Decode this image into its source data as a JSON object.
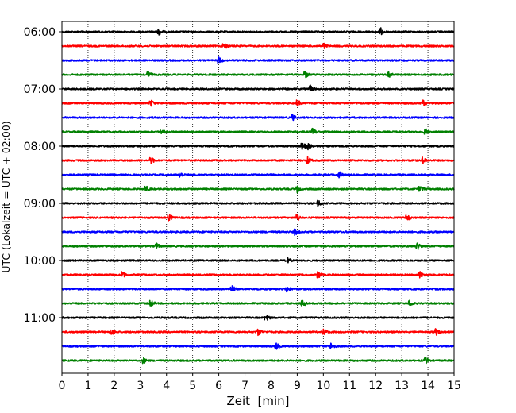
{
  "chart_data": {
    "type": "line",
    "title": "",
    "xlabel": "Zeit  [min]",
    "ylabel": "UTC (Lokalzeit = UTC + 02:00)",
    "xlim": [
      0,
      15
    ],
    "x_ticks": [
      "0",
      "1",
      "2",
      "3",
      "4",
      "5",
      "6",
      "7",
      "8",
      "9",
      "10",
      "11",
      "12",
      "13",
      "14",
      "15"
    ],
    "y_ticks": [
      "06:00",
      "07:00",
      "08:00",
      "09:00",
      "10:00",
      "11:00"
    ],
    "grid": "vertical-dotted",
    "row_colors": [
      "#000000",
      "#ff0000",
      "#0000ff",
      "#008000"
    ],
    "rows": [
      {
        "start": "06:00",
        "events": [
          3.7,
          12.2
        ]
      },
      {
        "start": "06:15",
        "events": [
          6.2,
          10.0
        ]
      },
      {
        "start": "06:30",
        "events": [
          6.0
        ]
      },
      {
        "start": "06:45",
        "events": [
          3.3,
          9.3,
          12.5
        ]
      },
      {
        "start": "07:00",
        "events": [
          9.5
        ]
      },
      {
        "start": "07:15",
        "events": [
          3.4,
          9.0,
          13.8
        ]
      },
      {
        "start": "07:30",
        "events": [
          8.8
        ]
      },
      {
        "start": "07:45",
        "events": [
          3.8,
          9.6,
          13.9
        ]
      },
      {
        "start": "08:00",
        "events": [
          9.2,
          9.4
        ]
      },
      {
        "start": "08:15",
        "events": [
          3.4,
          9.4,
          13.8
        ]
      },
      {
        "start": "08:30",
        "events": [
          4.5,
          10.6
        ]
      },
      {
        "start": "08:45",
        "events": [
          3.2,
          9.0,
          13.7
        ]
      },
      {
        "start": "09:00",
        "events": [
          9.8
        ]
      },
      {
        "start": "09:15",
        "events": [
          4.1,
          9.0,
          13.2
        ]
      },
      {
        "start": "09:30",
        "events": [
          8.9
        ]
      },
      {
        "start": "09:45",
        "events": [
          3.6,
          13.6
        ]
      },
      {
        "start": "10:00",
        "events": [
          8.6
        ]
      },
      {
        "start": "10:15",
        "events": [
          2.3,
          9.8,
          13.7
        ]
      },
      {
        "start": "10:30",
        "events": [
          6.5,
          8.6
        ]
      },
      {
        "start": "10:45",
        "events": [
          3.4,
          9.2,
          13.3
        ]
      },
      {
        "start": "11:00",
        "events": [
          7.8
        ]
      },
      {
        "start": "11:15",
        "events": [
          1.9,
          7.5,
          10.0,
          14.3
        ]
      },
      {
        "start": "11:30",
        "events": [
          8.2,
          10.3
        ]
      },
      {
        "start": "11:45",
        "events": [
          3.1,
          13.9
        ]
      }
    ]
  }
}
